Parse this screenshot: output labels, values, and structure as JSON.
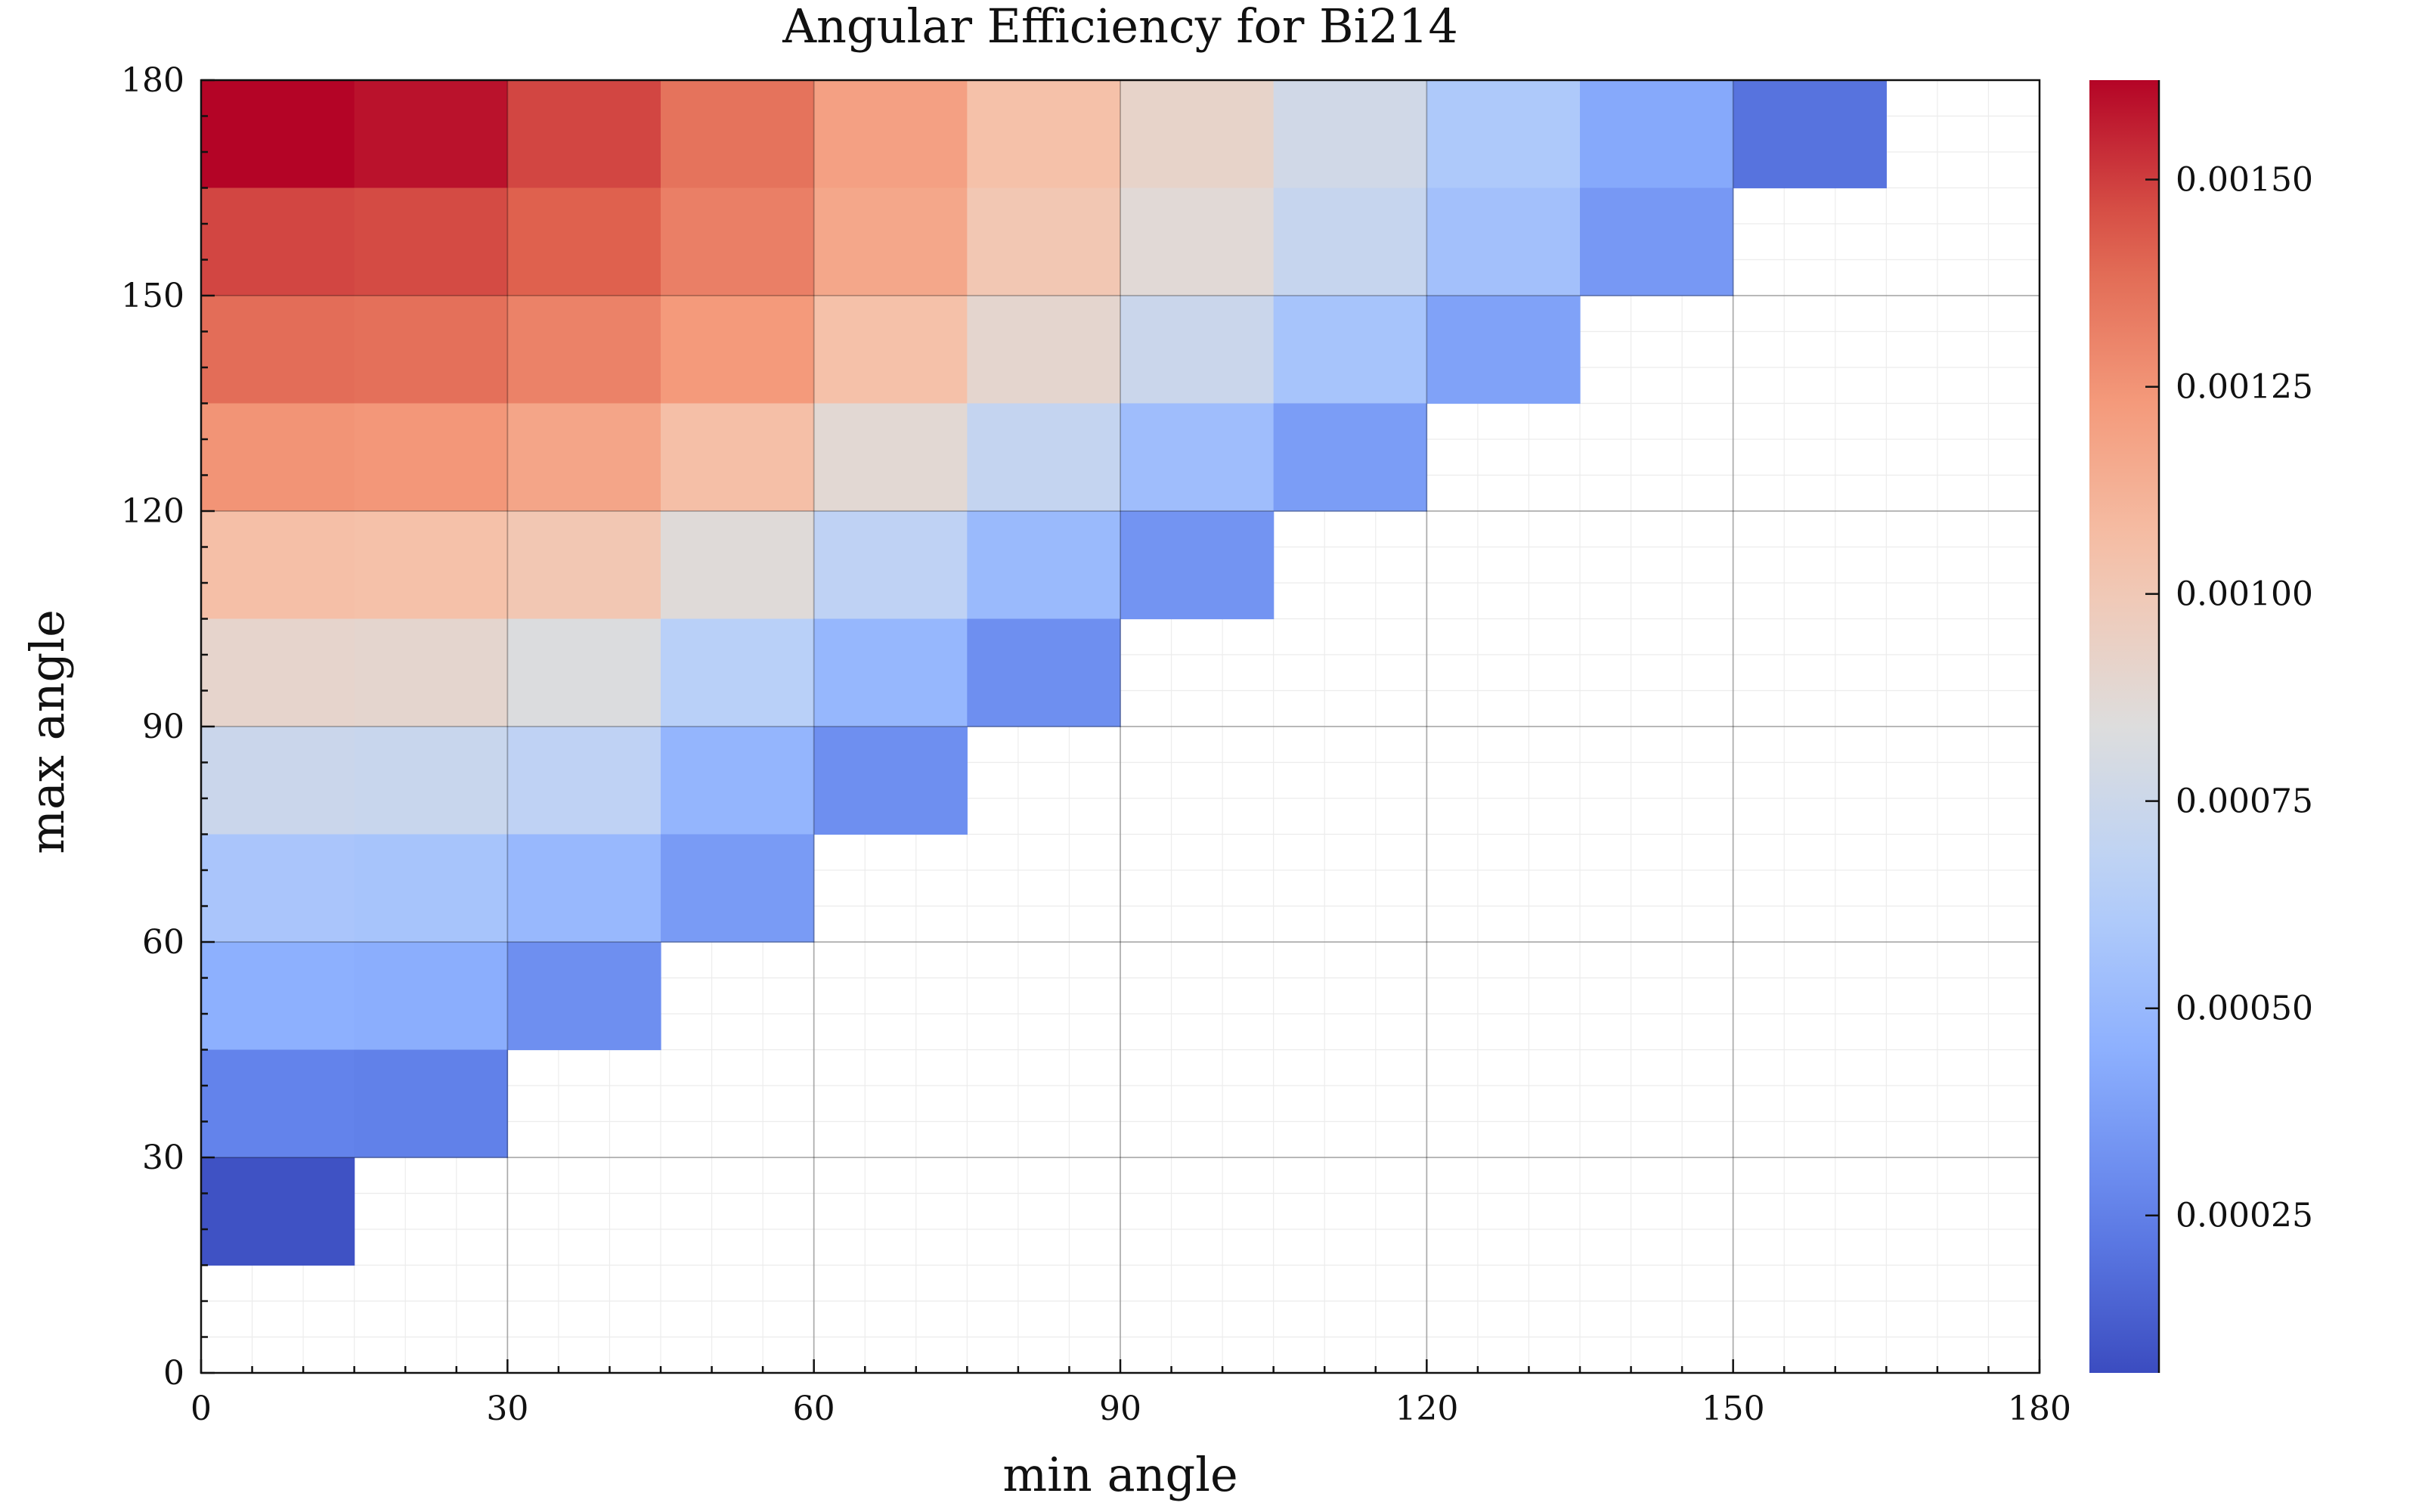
{
  "chart_data": {
    "type": "heatmap",
    "title": "Angular Efficiency for Bi214",
    "xlabel": "min angle",
    "ylabel": "max angle",
    "xlim": [
      0,
      180
    ],
    "ylim": [
      0,
      180
    ],
    "x_ticks": [
      "0",
      "30",
      "60",
      "90",
      "120",
      "150",
      "180"
    ],
    "y_ticks": [
      "0",
      "30",
      "60",
      "90",
      "120",
      "150",
      "180"
    ],
    "bin_width": 15,
    "colormap": "coolwarm",
    "colorbar": {
      "range": [
        6e-05,
        0.00162
      ],
      "ticks": [
        {
          "value": 0.00025,
          "label": "0.00025"
        },
        {
          "value": 0.0005,
          "label": "0.00050"
        },
        {
          "value": 0.00075,
          "label": "0.00075"
        },
        {
          "value": 0.001,
          "label": "0.00100"
        },
        {
          "value": 0.00125,
          "label": "0.00125"
        },
        {
          "value": 0.0015,
          "label": "0.00150"
        }
      ]
    },
    "grid": true,
    "x_bins": [
      0,
      15,
      30,
      45,
      60,
      75,
      90,
      105,
      120,
      135,
      150,
      165
    ],
    "rows": [
      {
        "y": 165,
        "values": [
          0.00162,
          0.00159,
          0.00148,
          0.00136,
          0.0012,
          0.00105,
          0.00092,
          0.00077,
          0.0006,
          0.00042,
          0.0002,
          null
        ]
      },
      {
        "y": 150,
        "values": [
          0.00148,
          0.00147,
          0.00142,
          0.00132,
          0.00117,
          0.00101,
          0.00087,
          0.00072,
          0.00055,
          0.00035,
          null,
          null
        ]
      },
      {
        "y": 135,
        "values": [
          0.00138,
          0.00137,
          0.00131,
          0.00123,
          0.00105,
          0.0009,
          0.00074,
          0.00057,
          0.00039,
          null,
          null,
          null
        ]
      },
      {
        "y": 120,
        "values": [
          0.00125,
          0.00124,
          0.00118,
          0.00106,
          0.00088,
          0.00071,
          0.00053,
          0.00037,
          null,
          null,
          null,
          null
        ]
      },
      {
        "y": 105,
        "values": [
          0.00106,
          0.00105,
          0.00101,
          0.00086,
          0.00068,
          0.00051,
          0.00033,
          null,
          null,
          null,
          null,
          null
        ]
      },
      {
        "y": 90,
        "values": [
          0.00091,
          0.0009,
          0.00083,
          0.00065,
          0.00049,
          0.00031,
          null,
          null,
          null,
          null,
          null,
          null
        ]
      },
      {
        "y": 75,
        "values": [
          0.00074,
          0.00073,
          0.00068,
          0.00048,
          0.00031,
          null,
          null,
          null,
          null,
          null,
          null,
          null
        ]
      },
      {
        "y": 60,
        "values": [
          0.00058,
          0.00057,
          0.0005,
          0.00036,
          null,
          null,
          null,
          null,
          null,
          null,
          null,
          null
        ]
      },
      {
        "y": 45,
        "values": [
          0.00045,
          0.00044,
          0.00031,
          null,
          null,
          null,
          null,
          null,
          null,
          null,
          null,
          null
        ]
      },
      {
        "y": 30,
        "values": [
          0.00026,
          0.00025,
          null,
          null,
          null,
          null,
          null,
          null,
          null,
          null,
          null,
          null
        ]
      },
      {
        "y": 15,
        "values": [
          8e-05,
          null,
          null,
          null,
          null,
          null,
          null,
          null,
          null,
          null,
          null,
          null
        ]
      }
    ]
  }
}
